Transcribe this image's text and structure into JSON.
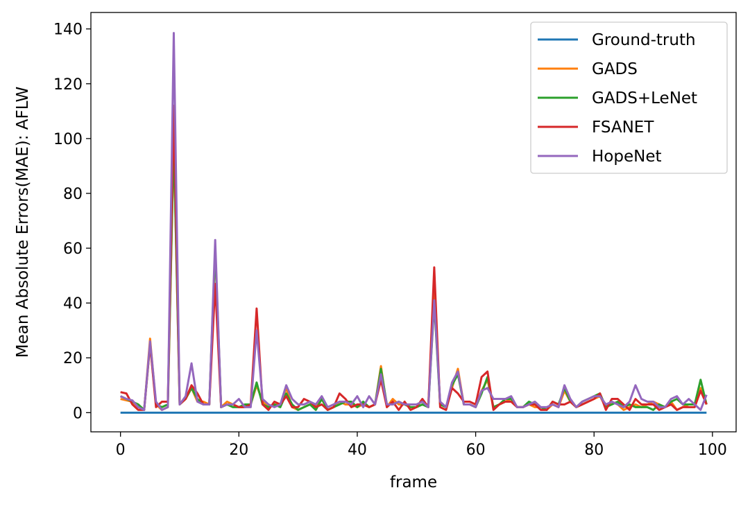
{
  "chart_data": {
    "type": "line",
    "title": "",
    "xlabel": "frame",
    "ylabel": "Mean Absolute Errors(MAE): AFLW",
    "xlim": [
      -5,
      104
    ],
    "ylim": [
      -7,
      146
    ],
    "xticks": [
      0,
      20,
      40,
      60,
      80,
      100
    ],
    "yticks": [
      0,
      20,
      40,
      60,
      80,
      100,
      120,
      140
    ],
    "xtick_labels": [
      "0",
      "20",
      "40",
      "60",
      "80",
      "100"
    ],
    "ytick_labels": [
      "0",
      "20",
      "40",
      "60",
      "80",
      "100",
      "120",
      "140"
    ],
    "grid": false,
    "legend_position": "top-right",
    "series": [
      {
        "name": "Ground-truth",
        "color": "#1f77b4",
        "y": [
          0,
          0,
          0,
          0,
          0,
          0,
          0,
          0,
          0,
          0,
          0,
          0,
          0,
          0,
          0,
          0,
          0,
          0,
          0,
          0,
          0,
          0,
          0,
          0,
          0,
          0,
          0,
          0,
          0,
          0,
          0,
          0,
          0,
          0,
          0,
          0,
          0,
          0,
          0,
          0,
          0,
          0,
          0,
          0,
          0,
          0,
          0,
          0,
          0,
          0,
          0,
          0,
          0,
          0,
          0,
          0,
          0,
          0,
          0,
          0,
          0,
          0,
          0,
          0,
          0,
          0,
          0,
          0,
          0,
          0,
          0,
          0,
          0,
          0,
          0,
          0,
          0,
          0,
          0,
          0,
          0,
          0,
          0,
          0,
          0,
          0,
          0,
          0,
          0,
          0,
          0,
          0,
          0,
          0,
          0,
          0,
          0,
          0,
          0,
          0
        ]
      },
      {
        "name": "GADS",
        "color": "#ff7f0e",
        "y": [
          5,
          4.5,
          4,
          2,
          1,
          27,
          3,
          1,
          2,
          99,
          3,
          5,
          9,
          4,
          4,
          3,
          59,
          2,
          4,
          3,
          2,
          2,
          3,
          10,
          4,
          2,
          3,
          3,
          9,
          2,
          1,
          2,
          3,
          2,
          5,
          1,
          2,
          4,
          3,
          3,
          2,
          3,
          2,
          3,
          17,
          2,
          5,
          3,
          3,
          2,
          2,
          3,
          3,
          45,
          3,
          2,
          9,
          16,
          3,
          3,
          2,
          8,
          12,
          2,
          3,
          4,
          5,
          2,
          2,
          3,
          2,
          2,
          1,
          3,
          2,
          8,
          4,
          2,
          3,
          4,
          5,
          6,
          2,
          4,
          3,
          1,
          2,
          3,
          2,
          3,
          4,
          3,
          2,
          4,
          1,
          2,
          3,
          3,
          9,
          3
        ]
      },
      {
        "name": "GADS+LeNet",
        "color": "#2ca02c",
        "y": [
          6,
          5,
          4,
          3,
          1,
          25,
          3,
          2,
          3,
          100,
          3,
          5,
          9,
          5,
          3,
          3,
          60,
          2,
          3,
          2,
          2,
          3,
          3,
          11,
          3,
          2,
          3,
          2,
          7,
          3,
          1,
          2,
          3,
          1,
          5,
          1,
          2,
          3,
          4,
          4,
          2,
          4,
          2,
          3,
          16,
          3,
          3,
          4,
          3,
          2,
          2,
          3,
          2,
          40,
          3,
          2,
          10,
          14,
          3,
          3,
          2,
          7,
          13,
          2,
          3,
          5,
          5,
          2,
          2,
          4,
          3,
          2,
          1,
          4,
          3,
          9,
          4,
          2,
          4,
          5,
          6,
          7,
          2,
          3,
          4,
          2,
          3,
          2,
          2,
          2,
          1,
          3,
          2,
          4,
          5,
          3,
          3,
          3,
          12,
          3
        ]
      },
      {
        "name": "FSANET",
        "color": "#d62728",
        "y": [
          7.5,
          7,
          3,
          1,
          1,
          25,
          2,
          4,
          4,
          112,
          3,
          5,
          10,
          7,
          3,
          3,
          47,
          2,
          3,
          3,
          2,
          2,
          3,
          38,
          3,
          1,
          4,
          3,
          6,
          2,
          2,
          5,
          4,
          2,
          3,
          1,
          2,
          7,
          5,
          2,
          3,
          3,
          2,
          3,
          12,
          2,
          4,
          1,
          4,
          1,
          2,
          5,
          2,
          53,
          2,
          1,
          9,
          7,
          4,
          4,
          3,
          13,
          15,
          1,
          3,
          4,
          4,
          2,
          2,
          3,
          3,
          1,
          1,
          4,
          3,
          3,
          4,
          2,
          3,
          4,
          5,
          7,
          1,
          5,
          5,
          3,
          1,
          5,
          3,
          3,
          3,
          1,
          2,
          3,
          1,
          2,
          2,
          2,
          8,
          3
        ]
      },
      {
        "name": "HopeNet",
        "color": "#9467bd",
        "y": [
          6,
          5,
          4.5,
          2,
          1,
          26,
          4,
          1,
          2,
          138.5,
          3,
          6,
          18,
          4,
          3,
          3,
          63,
          2,
          3,
          3,
          5,
          2,
          2,
          30,
          5,
          3,
          2,
          3,
          10,
          5,
          3,
          3,
          4,
          3,
          6,
          2,
          3,
          4,
          4,
          3,
          6,
          2,
          6,
          3,
          14,
          3,
          3,
          4,
          3,
          3,
          3,
          4,
          2,
          41,
          4,
          2,
          11,
          15,
          3,
          3,
          2,
          8,
          9,
          5,
          5,
          5,
          6,
          2,
          2,
          3,
          4,
          2,
          2,
          3,
          2,
          10,
          5,
          2,
          4,
          5,
          6,
          6,
          3,
          4,
          3,
          2,
          4,
          10,
          5,
          4,
          4,
          2,
          2,
          5,
          6,
          3,
          5,
          3,
          1,
          6.5
        ]
      }
    ]
  }
}
